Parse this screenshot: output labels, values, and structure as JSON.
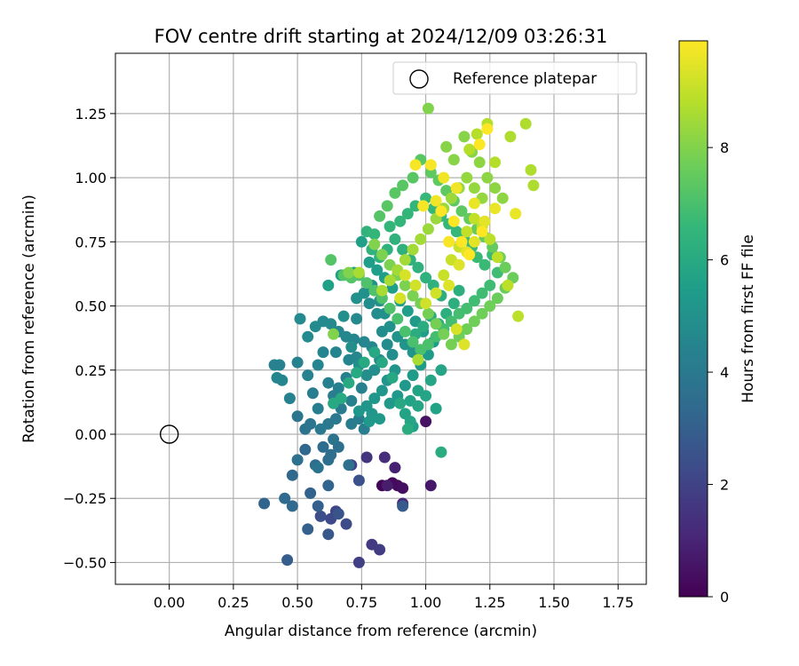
{
  "chart_data": {
    "type": "scatter",
    "title": "FOV centre drift starting at 2024/12/09 03:26:31",
    "xlabel": "Angular distance from reference (arcmin)",
    "ylabel": "Rotation from reference (arcmin)",
    "xlim": [
      -0.21,
      1.86
    ],
    "ylim": [
      -0.585,
      1.485
    ],
    "xticks": [
      0.0,
      0.25,
      0.5,
      0.75,
      1.0,
      1.25,
      1.5,
      1.75
    ],
    "xtick_labels": [
      "0.00",
      "0.25",
      "0.50",
      "0.75",
      "1.00",
      "1.25",
      "1.50",
      "1.75"
    ],
    "yticks": [
      -0.5,
      -0.25,
      0.0,
      0.25,
      0.5,
      0.75,
      1.0,
      1.25
    ],
    "ytick_labels": [
      "−0.50",
      "−0.25",
      "0.00",
      "0.25",
      "0.50",
      "0.75",
      "1.00",
      "1.25"
    ],
    "grid": true,
    "legend": {
      "position": "top-right",
      "entries": [
        "Reference platepar"
      ]
    },
    "reference_point": {
      "x": 0.0,
      "y": 0.0
    },
    "colorbar": {
      "label": "Hours from first FF file",
      "colormap": "viridis",
      "range": [
        0,
        9.9
      ],
      "ticks": [
        0,
        2,
        4,
        6,
        8
      ],
      "tick_labels": [
        "0",
        "2",
        "4",
        "6",
        "8"
      ]
    },
    "colormap_stops": [
      "#440154",
      "#482878",
      "#3e4989",
      "#31688e",
      "#26828e",
      "#1f9e89",
      "#35b779",
      "#6ece58",
      "#b5de2b",
      "#fde725"
    ],
    "points": [
      [
        0.83,
        -0.2,
        0.1
      ],
      [
        0.87,
        -0.19,
        0.2
      ],
      [
        0.89,
        -0.2,
        0.3
      ],
      [
        0.91,
        -0.21,
        0.4
      ],
      [
        1.0,
        0.05,
        0.5
      ],
      [
        1.02,
        -0.2,
        0.6
      ],
      [
        0.85,
        -0.2,
        0.8
      ],
      [
        0.88,
        -0.13,
        0.9
      ],
      [
        0.91,
        -0.27,
        1.1
      ],
      [
        0.84,
        -0.09,
        1.3
      ],
      [
        0.77,
        -0.09,
        1.5
      ],
      [
        0.79,
        -0.43,
        1.7
      ],
      [
        0.82,
        -0.45,
        1.8
      ],
      [
        0.74,
        -0.5,
        1.9
      ],
      [
        0.71,
        -0.12,
        2.0
      ],
      [
        0.65,
        -0.3,
        2.1
      ],
      [
        0.63,
        -0.33,
        2.2
      ],
      [
        0.69,
        -0.35,
        2.3
      ],
      [
        0.59,
        -0.32,
        2.4
      ],
      [
        0.74,
        -0.18,
        2.5
      ],
      [
        0.66,
        -0.31,
        2.6
      ],
      [
        0.62,
        -0.39,
        2.7
      ],
      [
        0.91,
        -0.28,
        2.8
      ],
      [
        0.46,
        -0.49,
        2.9
      ],
      [
        0.54,
        -0.37,
        3.0
      ],
      [
        0.58,
        -0.28,
        3.0
      ],
      [
        0.55,
        -0.23,
        3.1
      ],
      [
        0.62,
        -0.2,
        3.2
      ],
      [
        0.37,
        -0.27,
        3.2
      ],
      [
        0.53,
        -0.06,
        3.3
      ],
      [
        0.48,
        -0.16,
        3.3
      ],
      [
        0.45,
        -0.25,
        3.4
      ],
      [
        0.48,
        -0.28,
        3.4
      ],
      [
        0.57,
        -0.12,
        3.5
      ],
      [
        0.6,
        -0.05,
        3.5
      ],
      [
        0.62,
        -0.1,
        3.6
      ],
      [
        0.63,
        -0.08,
        3.6
      ],
      [
        0.66,
        -0.05,
        3.6
      ],
      [
        0.7,
        -0.12,
        3.7
      ],
      [
        0.5,
        -0.1,
        3.7
      ],
      [
        0.58,
        -0.13,
        3.8
      ],
      [
        0.64,
        -0.02,
        3.8
      ],
      [
        0.53,
        0.02,
        3.8
      ],
      [
        0.5,
        0.07,
        3.9
      ],
      [
        0.55,
        0.04,
        3.9
      ],
      [
        0.59,
        0.02,
        4.0
      ],
      [
        0.62,
        0.04,
        4.0
      ],
      [
        0.65,
        0.06,
        4.0
      ],
      [
        0.67,
        0.1,
        4.1
      ],
      [
        0.71,
        0.04,
        4.1
      ],
      [
        0.74,
        0.06,
        4.1
      ],
      [
        0.76,
        0.02,
        4.2
      ],
      [
        0.64,
        0.15,
        4.2
      ],
      [
        0.56,
        0.16,
        4.2
      ],
      [
        0.58,
        0.1,
        4.2
      ],
      [
        0.62,
        0.2,
        4.3
      ],
      [
        0.66,
        0.18,
        4.3
      ],
      [
        0.69,
        0.22,
        4.3
      ],
      [
        0.71,
        0.13,
        4.3
      ],
      [
        0.75,
        0.18,
        4.3
      ],
      [
        0.5,
        0.28,
        4.4
      ],
      [
        0.54,
        0.23,
        4.4
      ],
      [
        0.47,
        0.14,
        4.4
      ],
      [
        0.41,
        0.27,
        4.4
      ],
      [
        0.43,
        0.27,
        4.4
      ],
      [
        0.44,
        0.21,
        4.5
      ],
      [
        0.42,
        0.22,
        4.5
      ],
      [
        0.58,
        0.27,
        4.5
      ],
      [
        0.6,
        0.32,
        4.5
      ],
      [
        0.65,
        0.32,
        4.5
      ],
      [
        0.7,
        0.29,
        4.5
      ],
      [
        0.73,
        0.3,
        4.6
      ],
      [
        0.66,
        0.4,
        4.6
      ],
      [
        0.69,
        0.38,
        4.6
      ],
      [
        0.72,
        0.37,
        4.6
      ],
      [
        0.76,
        0.36,
        4.6
      ],
      [
        0.79,
        0.34,
        4.6
      ],
      [
        0.6,
        0.44,
        4.7
      ],
      [
        0.63,
        0.43,
        4.7
      ],
      [
        0.57,
        0.42,
        4.7
      ],
      [
        0.54,
        0.38,
        4.7
      ],
      [
        0.51,
        0.45,
        4.7
      ],
      [
        0.73,
        0.45,
        4.7
      ],
      [
        0.78,
        0.51,
        4.8
      ],
      [
        0.81,
        0.47,
        4.8
      ],
      [
        0.83,
        0.4,
        4.8
      ],
      [
        0.85,
        0.35,
        4.8
      ],
      [
        0.87,
        0.31,
        4.8
      ],
      [
        0.82,
        0.29,
        4.8
      ],
      [
        0.8,
        0.25,
        4.9
      ],
      [
        0.77,
        0.23,
        4.9
      ],
      [
        0.74,
        0.27,
        4.9
      ],
      [
        0.71,
        0.34,
        4.9
      ],
      [
        0.68,
        0.46,
        4.9
      ],
      [
        0.73,
        0.53,
        5.0
      ],
      [
        0.76,
        0.55,
        5.0
      ],
      [
        0.79,
        0.58,
        5.0
      ],
      [
        0.82,
        0.52,
        5.0
      ],
      [
        0.84,
        0.47,
        5.0
      ],
      [
        0.86,
        0.42,
        5.0
      ],
      [
        0.89,
        0.38,
        5.1
      ],
      [
        0.92,
        0.35,
        5.1
      ],
      [
        0.95,
        0.32,
        5.1
      ],
      [
        0.88,
        0.25,
        5.1
      ],
      [
        0.85,
        0.21,
        5.1
      ],
      [
        0.83,
        0.17,
        5.2
      ],
      [
        0.8,
        0.14,
        5.2
      ],
      [
        0.77,
        0.11,
        5.2
      ],
      [
        0.74,
        0.09,
        5.2
      ],
      [
        0.79,
        0.08,
        5.2
      ],
      [
        0.82,
        0.06,
        5.3
      ],
      [
        0.78,
        0.05,
        5.3
      ],
      [
        0.86,
        0.12,
        5.3
      ],
      [
        0.89,
        0.15,
        5.3
      ],
      [
        0.92,
        0.19,
        5.3
      ],
      [
        0.95,
        0.23,
        5.4
      ],
      [
        0.98,
        0.27,
        5.4
      ],
      [
        1.01,
        0.31,
        5.4
      ],
      [
        1.03,
        0.36,
        5.4
      ],
      [
        0.99,
        0.4,
        5.4
      ],
      [
        0.96,
        0.44,
        5.4
      ],
      [
        0.93,
        0.48,
        5.5
      ],
      [
        0.9,
        0.52,
        5.5
      ],
      [
        0.87,
        0.57,
        5.5
      ],
      [
        0.84,
        0.61,
        5.5
      ],
      [
        0.81,
        0.64,
        5.5
      ],
      [
        0.78,
        0.67,
        5.5
      ],
      [
        0.72,
        0.63,
        5.6
      ],
      [
        0.67,
        0.62,
        5.6
      ],
      [
        0.62,
        0.58,
        5.6
      ],
      [
        0.75,
        0.75,
        5.6
      ],
      [
        0.95,
        0.03,
        5.6
      ],
      [
        0.92,
        0.08,
        5.7
      ],
      [
        0.94,
        0.13,
        5.7
      ],
      [
        0.97,
        0.17,
        5.7
      ],
      [
        1.04,
        0.1,
        5.7
      ],
      [
        1.06,
        0.25,
        5.8
      ],
      [
        1.02,
        0.21,
        5.8
      ],
      [
        1.0,
        0.15,
        5.8
      ],
      [
        0.97,
        0.11,
        5.8
      ],
      [
        0.94,
        0.05,
        5.8
      ],
      [
        0.9,
        0.12,
        5.9
      ],
      [
        0.87,
        0.22,
        5.9
      ],
      [
        0.83,
        0.28,
        5.9
      ],
      [
        0.8,
        0.32,
        5.9
      ],
      [
        0.76,
        0.28,
        6.0
      ],
      [
        0.73,
        0.24,
        6.0
      ],
      [
        0.7,
        0.2,
        6.0
      ],
      [
        0.67,
        0.14,
        6.0
      ],
      [
        0.64,
        0.12,
        6.0
      ],
      [
        1.06,
        -0.07,
        6.1
      ],
      [
        0.93,
        0.02,
        6.1
      ],
      [
        0.96,
        0.39,
        6.1
      ],
      [
        0.99,
        0.42,
        6.1
      ],
      [
        1.02,
        0.46,
        6.1
      ],
      [
        1.05,
        0.43,
        6.2
      ],
      [
        1.08,
        0.47,
        6.2
      ],
      [
        1.11,
        0.51,
        6.2
      ],
      [
        1.13,
        0.56,
        6.2
      ],
      [
        1.06,
        0.54,
        6.2
      ],
      [
        1.03,
        0.58,
        6.3
      ],
      [
        1.0,
        0.61,
        6.3
      ],
      [
        0.97,
        0.65,
        6.3
      ],
      [
        0.94,
        0.68,
        6.3
      ],
      [
        0.91,
        0.72,
        6.3
      ],
      [
        0.88,
        0.76,
        6.4
      ],
      [
        0.85,
        0.72,
        6.4
      ],
      [
        0.82,
        0.69,
        6.4
      ],
      [
        0.79,
        0.72,
        6.4
      ],
      [
        0.77,
        0.79,
        6.4
      ],
      [
        0.8,
        0.78,
        6.5
      ],
      [
        0.86,
        0.81,
        6.5
      ],
      [
        0.9,
        0.83,
        6.5
      ],
      [
        0.93,
        0.86,
        6.5
      ],
      [
        0.96,
        0.89,
        6.5
      ],
      [
        1.0,
        0.92,
        6.6
      ],
      [
        1.03,
        0.88,
        6.6
      ],
      [
        1.06,
        0.85,
        6.6
      ],
      [
        1.09,
        0.82,
        6.6
      ],
      [
        1.12,
        0.79,
        6.6
      ],
      [
        1.15,
        0.76,
        6.7
      ],
      [
        1.18,
        0.73,
        6.7
      ],
      [
        1.2,
        0.69,
        6.7
      ],
      [
        1.23,
        0.66,
        6.7
      ],
      [
        1.26,
        0.7,
        6.7
      ],
      [
        1.28,
        0.63,
        6.8
      ],
      [
        1.25,
        0.58,
        6.8
      ],
      [
        1.22,
        0.55,
        6.8
      ],
      [
        1.19,
        0.52,
        6.8
      ],
      [
        1.16,
        0.49,
        6.9
      ],
      [
        1.13,
        0.47,
        6.9
      ],
      [
        1.1,
        0.44,
        6.9
      ],
      [
        1.07,
        0.41,
        6.9
      ],
      [
        1.04,
        0.38,
        6.9
      ],
      [
        1.01,
        0.35,
        7.0
      ],
      [
        0.98,
        0.33,
        7.0
      ],
      [
        0.95,
        0.36,
        7.0
      ],
      [
        0.92,
        0.4,
        7.0
      ],
      [
        0.89,
        0.45,
        7.0
      ],
      [
        0.86,
        0.49,
        7.1
      ],
      [
        0.83,
        0.53,
        7.1
      ],
      [
        0.8,
        0.56,
        7.1
      ],
      [
        0.77,
        0.59,
        7.1
      ],
      [
        0.74,
        0.62,
        7.1
      ],
      [
        0.71,
        0.61,
        7.2
      ],
      [
        0.68,
        0.62,
        7.2
      ],
      [
        0.63,
        0.68,
        7.2
      ],
      [
        0.82,
        0.85,
        7.2
      ],
      [
        0.85,
        0.89,
        7.3
      ],
      [
        0.88,
        0.94,
        7.3
      ],
      [
        0.91,
        0.97,
        7.3
      ],
      [
        0.95,
        1.0,
        7.3
      ],
      [
        0.98,
        1.07,
        7.3
      ],
      [
        1.02,
        1.02,
        7.4
      ],
      [
        1.05,
        0.99,
        7.4
      ],
      [
        1.08,
        0.95,
        7.4
      ],
      [
        1.11,
        0.91,
        7.4
      ],
      [
        1.14,
        0.87,
        7.4
      ],
      [
        1.17,
        0.84,
        7.5
      ],
      [
        1.2,
        0.8,
        7.5
      ],
      [
        1.23,
        0.77,
        7.5
      ],
      [
        1.26,
        0.73,
        7.5
      ],
      [
        1.29,
        0.69,
        7.6
      ],
      [
        1.31,
        0.65,
        7.6
      ],
      [
        1.34,
        0.61,
        7.6
      ],
      [
        1.31,
        0.57,
        7.6
      ],
      [
        1.28,
        0.53,
        7.6
      ],
      [
        1.25,
        0.5,
        7.7
      ],
      [
        1.22,
        0.47,
        7.7
      ],
      [
        1.19,
        0.44,
        7.7
      ],
      [
        1.16,
        0.41,
        7.7
      ],
      [
        1.13,
        0.38,
        7.7
      ],
      [
        1.1,
        0.35,
        7.8
      ],
      [
        1.07,
        0.39,
        7.8
      ],
      [
        1.04,
        0.43,
        7.8
      ],
      [
        1.01,
        0.47,
        7.8
      ],
      [
        0.98,
        0.51,
        7.8
      ],
      [
        0.95,
        0.54,
        7.9
      ],
      [
        0.92,
        0.58,
        7.9
      ],
      [
        0.89,
        0.62,
        7.9
      ],
      [
        0.86,
        0.66,
        7.9
      ],
      [
        0.83,
        0.7,
        7.9
      ],
      [
        0.8,
        0.74,
        8.0
      ],
      [
        0.64,
        0.39,
        8.0
      ],
      [
        0.7,
        0.63,
        8.0
      ],
      [
        1.01,
        1.27,
        8.0
      ],
      [
        1.08,
        1.12,
        8.1
      ],
      [
        1.11,
        1.07,
        8.1
      ],
      [
        1.15,
        1.16,
        8.1
      ],
      [
        1.18,
        1.1,
        8.1
      ],
      [
        1.21,
        1.06,
        8.2
      ],
      [
        1.24,
        1.0,
        8.2
      ],
      [
        1.27,
        0.96,
        8.2
      ],
      [
        1.3,
        0.92,
        8.2
      ],
      [
        1.22,
        0.92,
        8.3
      ],
      [
        1.19,
        0.96,
        8.3
      ],
      [
        1.16,
        1.0,
        8.3
      ],
      [
        1.13,
        0.96,
        8.3
      ],
      [
        1.1,
        0.92,
        8.4
      ],
      [
        1.07,
        0.88,
        8.4
      ],
      [
        1.04,
        0.84,
        8.4
      ],
      [
        1.01,
        0.8,
        8.4
      ],
      [
        0.98,
        0.76,
        8.5
      ],
      [
        0.95,
        0.72,
        8.5
      ],
      [
        0.92,
        0.68,
        8.5
      ],
      [
        0.89,
        0.64,
        8.5
      ],
      [
        0.86,
        0.6,
        8.6
      ],
      [
        0.83,
        0.56,
        8.6
      ],
      [
        0.97,
        0.29,
        8.6
      ],
      [
        0.74,
        0.63,
        8.6
      ],
      [
        1.41,
        1.03,
        8.7
      ],
      [
        1.39,
        1.21,
        8.7
      ],
      [
        1.42,
        0.97,
        8.7
      ],
      [
        1.33,
        1.16,
        8.7
      ],
      [
        1.27,
        1.06,
        8.8
      ],
      [
        1.24,
        1.21,
        8.8
      ],
      [
        1.2,
        1.17,
        8.8
      ],
      [
        1.17,
        1.11,
        8.8
      ],
      [
        1.36,
        0.46,
        8.9
      ],
      [
        1.32,
        0.58,
        8.9
      ],
      [
        1.28,
        0.69,
        8.9
      ],
      [
        1.25,
        0.76,
        8.9
      ],
      [
        1.22,
        0.81,
        9.0
      ],
      [
        1.19,
        0.84,
        9.0
      ],
      [
        1.16,
        0.79,
        9.0
      ],
      [
        1.13,
        0.73,
        9.1
      ],
      [
        1.1,
        0.68,
        9.1
      ],
      [
        1.07,
        0.62,
        9.1
      ],
      [
        1.04,
        0.55,
        9.2
      ],
      [
        1.0,
        0.51,
        9.2
      ],
      [
        0.96,
        0.58,
        9.2
      ],
      [
        0.92,
        0.62,
        9.3
      ],
      [
        0.9,
        0.53,
        9.3
      ],
      [
        1.12,
        0.41,
        9.3
      ],
      [
        1.15,
        0.35,
        9.4
      ],
      [
        1.09,
        0.58,
        9.4
      ],
      [
        1.13,
        0.66,
        9.4
      ],
      [
        1.16,
        0.71,
        9.5
      ],
      [
        1.19,
        0.75,
        9.5
      ],
      [
        1.23,
        0.83,
        9.5
      ],
      [
        1.27,
        0.88,
        9.6
      ],
      [
        1.35,
        0.86,
        9.6
      ],
      [
        1.19,
        0.9,
        9.6
      ],
      [
        1.12,
        0.96,
        9.7
      ],
      [
        1.07,
        1.0,
        9.7
      ],
      [
        1.04,
        0.91,
        9.7
      ],
      [
        0.99,
        0.89,
        9.8
      ],
      [
        0.96,
        1.05,
        9.8
      ],
      [
        1.02,
        1.05,
        9.8
      ],
      [
        1.09,
        0.75,
        9.8
      ],
      [
        1.21,
        1.13,
        9.9
      ],
      [
        1.24,
        1.19,
        9.9
      ],
      [
        1.22,
        0.79,
        9.9
      ],
      [
        1.17,
        0.7,
        9.9
      ],
      [
        1.14,
        0.75,
        9.9
      ],
      [
        1.11,
        0.83,
        9.9
      ],
      [
        1.06,
        0.87,
        9.9
      ]
    ]
  }
}
